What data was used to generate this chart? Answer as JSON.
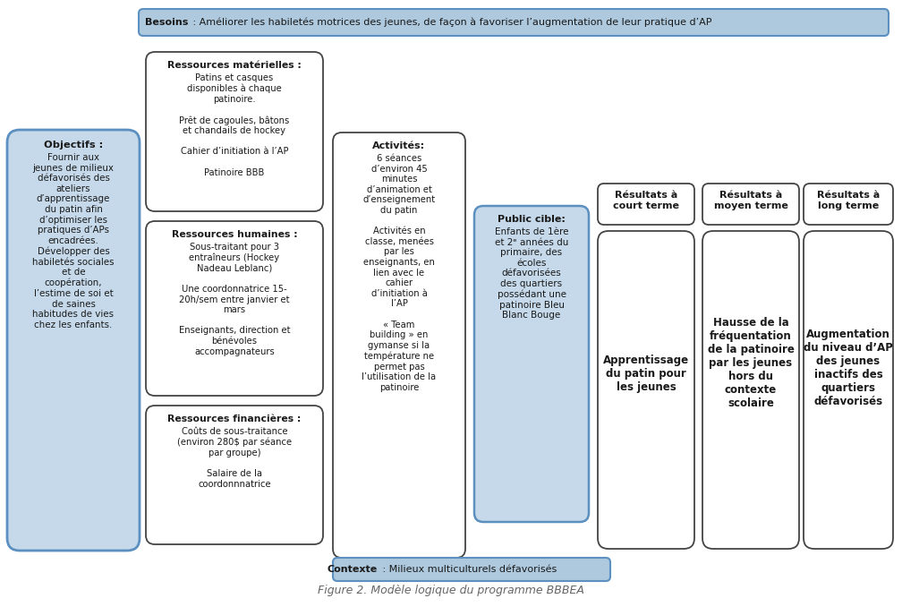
{
  "title": "Figure 2. Modèle logique du programme BBBEA",
  "besoins_bold": "Besoins",
  "besoins_rest": " : Améliorer les habiletés motrices des jeunes, de façon à favoriser l’augmentation de leur pratique d’AP",
  "contexte_bold": "Contexte",
  "contexte_rest": " : Milieux multiculturels défavorisés",
  "objectifs_title": "Objectifs :",
  "objectifs_body": "Fournir aux\njeunes de milieux\ndéfavorisés des\nateliers\nd’apprentissage\ndu patin afin\nd’optimiser les\npratiques d’APs\nencadrées.\nDévelopper des\nhabiletés sociales\net de\ncoopération,\nl’estime de soi et\nde saines\nhabitudes de vies\nchez les enfants.",
  "ressources_mat_title": "Ressources matérielles :",
  "ressources_mat_body": "Patins et casques\ndisponibles à chaque\npatinoire.\n\nPrêt de cagoules, bâtons\net chandails de hockey\n\nCahier d’initiation à l’AP\n\nPatinoire BBB",
  "ressources_hum_title": "Ressources humaines :",
  "ressources_hum_body": "Sous-traitant pour 3\nentraîneurs (Hockey\nNadeau Leblanc)\n\nUne coordonnatrice 15-\n20h/sem entre janvier et\nmars\n\nEnseignants, direction et\nbénévoles\naccompagnateurs",
  "ressources_fin_title": "Ressources financières :",
  "ressources_fin_body": "Coûts de sous-traitance\n(environ 280$ par séance\npar groupe)\n\nSalaire de la\ncoordonnnatrice",
  "activites_title": "Activités:",
  "activites_body": "6 séances\nd’environ 45\nminutes\nd’animation et\nd’enseignement\ndu patin\n\nActivités en\nclasse, menées\npar les\nenseignants, en\nlien avec le\ncahier\nd’initiation à\nl’AP\n\n« Team\nbuilding » en\ngymanse si la\ntempérature ne\npermet pas\nl’utilisation de la\npatinoire",
  "public_cible_title": "Public cible:",
  "public_cible_body": "Enfants de 1ère\net 2ᵉ années du\nprimaire, des\nécoles\ndéfavorisées\ndes quartiers\npossédant une\npatinoire Bleu\nBlanc Bouge",
  "court_terme_title": "Résultats à\ncourt terme",
  "court_terme_body": "Apprentissage\ndu patin pour\nles jeunes",
  "moyen_terme_title": "Résultats à\nmoyen terme",
  "moyen_terme_body": "Hausse de la\nfréquentation\nde la patinoire\npar les jeunes\nhors du\ncontexte\nscolaire",
  "long_terme_title": "Résultats à\nlong terme",
  "long_terme_body": "Augmentation\ndu niveau d’AP\ndes jeunes\ninactifs des\nquartiers\ndéfavorisés",
  "bg_color": "#ffffff",
  "blue_fill": "#c5d9ea",
  "blue_border": "#5b90c0",
  "header_fill": "#aec9de",
  "header_border": "#5b90c0",
  "box_border": "#444444",
  "box_fill": "#ffffff",
  "text_color": "#1a1a1a"
}
